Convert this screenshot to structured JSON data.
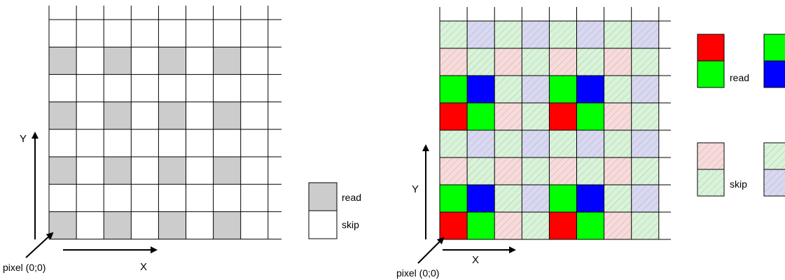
{
  "left_panel": {
    "axis_y": "Y",
    "axis_x": "X",
    "origin_label": "pixel (0;0)",
    "legend": [
      {
        "label": "read",
        "color": "#cccccc"
      },
      {
        "label": "skip",
        "color": "#ffffff"
      }
    ]
  },
  "right_panel": {
    "axis_y": "Y",
    "axis_x": "X",
    "origin_label": "pixel (0;0)",
    "legend_read_label": "read",
    "legend_skip_label": "skip"
  },
  "colors": {
    "red": "#ff0000",
    "green": "#00ff00",
    "blue": "#0000ff",
    "gray": "#cccccc",
    "skip_pink": "#f9dada",
    "skip_green": "#d8f4d8",
    "skip_blue": "#d8d8f2",
    "grid_line": "#000000"
  }
}
